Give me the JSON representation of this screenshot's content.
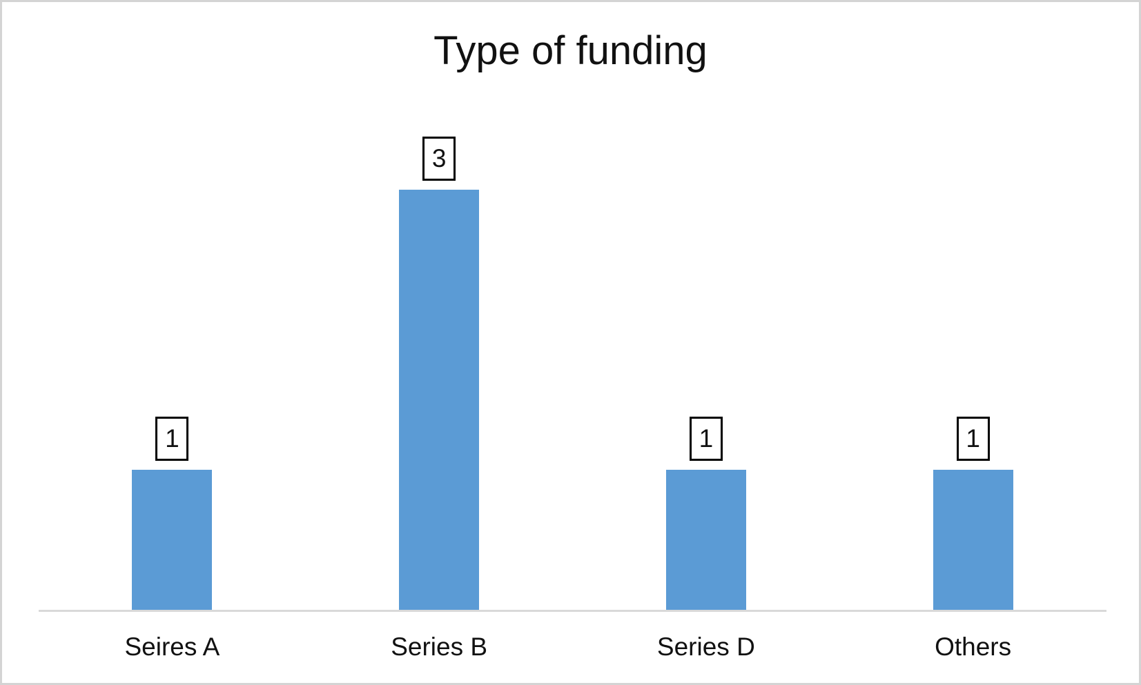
{
  "chart_data": {
    "type": "bar",
    "title": "Type of funding",
    "categories": [
      "Seires A",
      "Series B",
      "Series D",
      "Others"
    ],
    "values": [
      1,
      3,
      1,
      1
    ],
    "xlabel": "",
    "ylabel": "",
    "ylim": [
      0,
      3.6
    ],
    "grid": false,
    "legend": false,
    "data_labels": "boxed values above bars",
    "bar_color": "#5B9BD5",
    "axis_line_color": "#D9D9D9",
    "frame_border_color": "#D4D4D4",
    "text_color": "#111111",
    "background_color": "#FFFFFF"
  }
}
